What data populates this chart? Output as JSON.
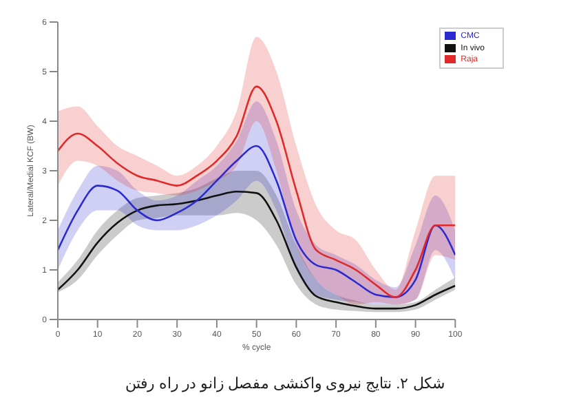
{
  "chart_data": {
    "type": "line",
    "xlabel": "% cycle",
    "ylabel": "Lateral/Medial KCF (BW)",
    "x": [
      0,
      5,
      10,
      15,
      20,
      25,
      30,
      35,
      40,
      45,
      50,
      55,
      60,
      65,
      70,
      75,
      80,
      85,
      90,
      95,
      100
    ],
    "xlim": [
      0,
      100
    ],
    "xticks": [
      0,
      10,
      20,
      30,
      40,
      50,
      60,
      70,
      80,
      90,
      100
    ],
    "ylim": [
      0,
      6
    ],
    "yticks": [
      0,
      1,
      2,
      3,
      4,
      5,
      6
    ],
    "grid": false,
    "legend": "top right",
    "marker": "none",
    "line_style": "solid",
    "series": [
      {
        "name": "In vivo",
        "color": "#111111",
        "values": [
          0.6,
          1.0,
          1.55,
          1.95,
          2.2,
          2.3,
          2.33,
          2.4,
          2.5,
          2.58,
          2.55,
          2.0,
          1.05,
          0.47,
          0.35,
          0.27,
          0.22,
          0.22,
          0.29,
          0.5,
          0.68
        ],
        "lower": [
          0.55,
          0.8,
          1.3,
          1.7,
          2.0,
          2.05,
          2.1,
          2.1,
          2.1,
          2.15,
          2.0,
          1.5,
          0.7,
          0.3,
          0.2,
          0.17,
          0.15,
          0.15,
          0.2,
          0.4,
          0.6
        ],
        "upper": [
          0.75,
          1.2,
          1.8,
          2.2,
          2.45,
          2.5,
          2.55,
          2.65,
          2.85,
          3.0,
          3.0,
          2.5,
          1.5,
          0.8,
          0.5,
          0.38,
          0.3,
          0.3,
          0.35,
          0.6,
          0.85
        ]
      },
      {
        "name": "CMC",
        "color": "#2a2ad0",
        "values": [
          1.4,
          2.2,
          2.7,
          2.6,
          2.2,
          2.0,
          2.15,
          2.4,
          2.8,
          3.2,
          3.5,
          2.8,
          1.6,
          1.1,
          1.0,
          0.75,
          0.5,
          0.45,
          0.8,
          1.9,
          1.3
        ],
        "lower": [
          1.0,
          1.8,
          2.2,
          2.2,
          1.9,
          1.8,
          1.8,
          1.9,
          2.1,
          2.4,
          2.8,
          2.2,
          1.0,
          0.5,
          0.4,
          0.35,
          0.3,
          0.3,
          0.4,
          1.4,
          0.8
        ],
        "upper": [
          1.8,
          2.6,
          3.1,
          3.0,
          2.6,
          2.4,
          2.5,
          2.8,
          3.1,
          3.6,
          4.4,
          3.6,
          2.2,
          1.5,
          1.3,
          1.1,
          0.8,
          0.65,
          1.5,
          2.5,
          1.8
        ]
      },
      {
        "name": "Raja",
        "color": "#e02a2a",
        "values": [
          3.4,
          3.75,
          3.5,
          3.15,
          2.9,
          2.8,
          2.7,
          2.9,
          3.2,
          3.7,
          4.7,
          4.0,
          2.6,
          1.4,
          1.2,
          1.0,
          0.7,
          0.45,
          1.0,
          1.9,
          1.9
        ],
        "lower": [
          2.7,
          3.2,
          3.1,
          2.8,
          2.6,
          2.55,
          2.5,
          2.6,
          2.8,
          3.1,
          4.0,
          3.0,
          1.5,
          0.8,
          0.5,
          0.3,
          0.35,
          0.3,
          0.4,
          1.3,
          1.2
        ],
        "upper": [
          4.2,
          4.3,
          3.9,
          3.5,
          3.3,
          3.1,
          2.9,
          3.1,
          3.5,
          4.2,
          5.7,
          5.0,
          3.5,
          2.3,
          1.8,
          1.6,
          1.0,
          0.6,
          1.8,
          2.9,
          2.9
        ]
      }
    ],
    "annotations": [
      "شکل ۲. نتایج نیروی واکنشی مفصل زانو در راه رفتن"
    ]
  }
}
